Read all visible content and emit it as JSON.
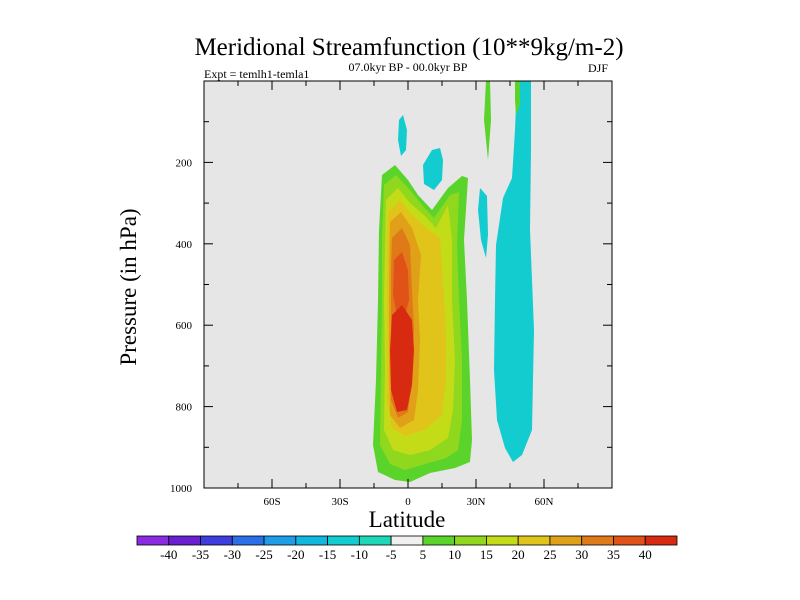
{
  "chart_data": {
    "type": "contour",
    "title": "Meridional Streamfunction (10**9kg/m-2)",
    "subtitle_left": "Expt = temlh1-temla1",
    "subtitle_center": "07.0kyr BP - 00.0kyr BP",
    "subtitle_right": "DJF",
    "xlabel": "Latitude",
    "ylabel": "Pressure (in hPa)",
    "xlim": [
      -90,
      90
    ],
    "ylim": [
      1000,
      0
    ],
    "x_ticks": [
      {
        "value": -60,
        "label": "60S"
      },
      {
        "value": -30,
        "label": "30S"
      },
      {
        "value": 0,
        "label": "0"
      },
      {
        "value": 30,
        "label": "30N"
      },
      {
        "value": 60,
        "label": "60N"
      }
    ],
    "y_ticks": [
      {
        "value": 200,
        "label": "200"
      },
      {
        "value": 400,
        "label": "400"
      },
      {
        "value": 600,
        "label": "600"
      },
      {
        "value": 800,
        "label": "800"
      },
      {
        "value": 1000,
        "label": "1000"
      }
    ],
    "background_color": "#e6e6e6",
    "colorbar": {
      "labels": [
        "-40",
        "-35",
        "-30",
        "-25",
        "-20",
        "-15",
        "-10",
        "-5",
        "5",
        "10",
        "15",
        "20",
        "25",
        "30",
        "35",
        "40"
      ],
      "colors": [
        "#8a2be2",
        "#6a1fd0",
        "#3d3de0",
        "#2a6ee8",
        "#1f9ce8",
        "#10b8e0",
        "#12ccd0",
        "#1cd8b6",
        "#f0f0f0",
        "#5ad42a",
        "#90d81e",
        "#c4dc18",
        "#e0c41a",
        "#e0a018",
        "#e07a18",
        "#e05218",
        "#d82a10"
      ]
    },
    "features": [
      {
        "name": "positive-cell",
        "lat_min": -12,
        "lat_max": 26,
        "p_top": 180,
        "p_bottom": 990,
        "levels": [
          5,
          10,
          15,
          20,
          25,
          30,
          35,
          40
        ],
        "max_value": 40,
        "max_location": {
          "lat": -2,
          "p": 700
        }
      },
      {
        "name": "negative-cell",
        "lat_min": 30,
        "lat_max": 55,
        "p_top": 0,
        "p_bottom": 960,
        "levels": [
          -5
        ],
        "min_value": -5,
        "min_location": {
          "lat": 45,
          "p": 600
        }
      }
    ]
  }
}
